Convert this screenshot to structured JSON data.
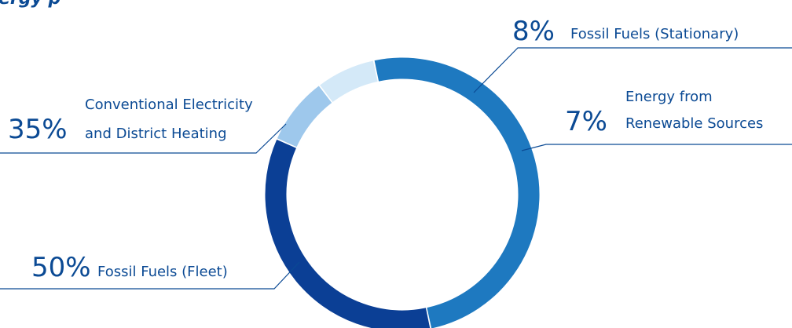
{
  "title_fragment": "ergy p",
  "chart_data": {
    "type": "pie",
    "style": "donut",
    "legend": "labels with leader lines",
    "slices": [
      {
        "key": "fossil-fuels-stationary",
        "value": 8,
        "percent_label": "8%",
        "label_lines": [
          "Fossil Fuels (Stationary)"
        ],
        "color": "#9ec8ec"
      },
      {
        "key": "energy-renewable",
        "value": 7,
        "percent_label": "7%",
        "label_lines": [
          "Energy from",
          "Renewable Sources"
        ],
        "color": "#d4e9f8"
      },
      {
        "key": "fossil-fuels-fleet",
        "value": 50,
        "percent_label": "50%",
        "label_lines": [
          "Fossil Fuels (Fleet)"
        ],
        "color": "#1e79c0"
      },
      {
        "key": "conventional-electricity",
        "value": 35,
        "percent_label": "35%",
        "label_lines": [
          "Conventional Electricity",
          "and District Heating"
        ],
        "color": "#0b3f95"
      }
    ]
  }
}
